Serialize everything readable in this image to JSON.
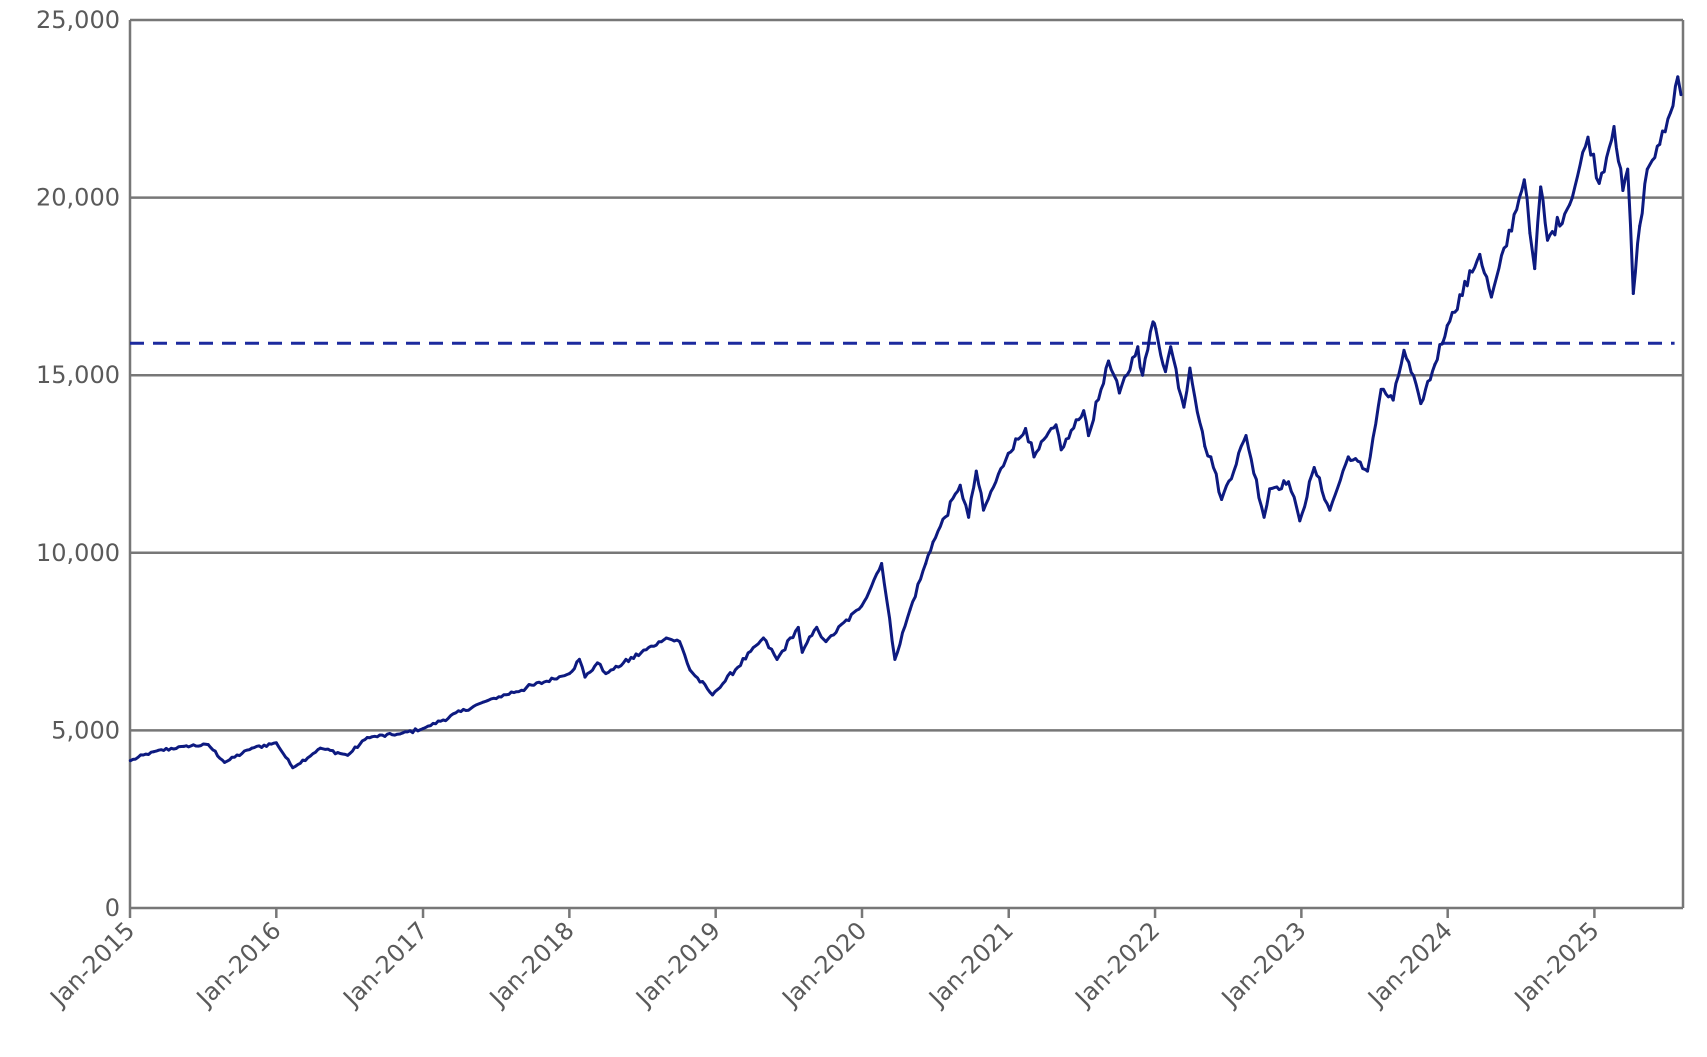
{
  "chart_data": {
    "type": "line",
    "title": "",
    "xlabel": "",
    "ylabel": "",
    "ylim": [
      0,
      25000
    ],
    "y_ticks": [
      0,
      5000,
      10000,
      15000,
      20000,
      25000
    ],
    "y_tick_labels": [
      "0",
      "5,000",
      "10,000",
      "15,000",
      "20,000",
      "25,000"
    ],
    "x_range": [
      "2015-01-01",
      "2025-08-10"
    ],
    "x_ticks": [
      "2015-01-01",
      "2016-01-01",
      "2017-01-01",
      "2018-01-01",
      "2019-01-01",
      "2020-01-01",
      "2021-01-01",
      "2022-01-01",
      "2023-01-01",
      "2024-01-01",
      "2025-01-01"
    ],
    "x_tick_labels": [
      "Jan-2015",
      "Jan-2016",
      "Jan-2017",
      "Jan-2018",
      "Jan-2019",
      "Jan-2020",
      "Jan-2021",
      "Jan-2022",
      "Jan-2023",
      "Jan-2024",
      "Jan-2025"
    ],
    "grid": "horizontal",
    "legend": "none",
    "colors": {
      "series": "#0d1a80",
      "reference": "#1c2a9e",
      "grid": "#777777",
      "text": "#5a5a5a"
    },
    "reference_line": {
      "y": 15900,
      "style": "dashed",
      "x_end": "2025-07-20"
    },
    "series": [
      {
        "x": [
          "2015-01-02",
          "2015-03-01",
          "2015-05-15",
          "2015-07-15",
          "2015-08-25",
          "2015-11-01",
          "2016-01-01",
          "2016-02-11",
          "2016-04-20",
          "2016-06-27",
          "2016-08-15",
          "2016-11-04",
          "2017-01-01",
          "2017-06-01",
          "2018-01-01",
          "2018-01-26",
          "2018-02-09",
          "2018-03-12",
          "2018-04-02",
          "2018-08-31",
          "2018-10-03",
          "2018-10-29",
          "2018-12-24",
          "2019-04-30",
          "2019-06-03",
          "2019-07-26",
          "2019-08-05",
          "2019-09-10",
          "2019-10-03",
          "2019-12-31",
          "2020-02-19",
          "2020-03-23",
          "2020-04-30",
          "2020-06-08",
          "2020-06-26",
          "2020-09-02",
          "2020-09-23",
          "2020-10-12",
          "2020-10-30",
          "2020-12-31",
          "2021-02-12",
          "2021-03-05",
          "2021-04-29",
          "2021-05-12",
          "2021-07-07",
          "2021-07-19",
          "2021-09-07",
          "2021-10-04",
          "2021-11-19",
          "2021-12-01",
          "2021-12-27",
          "2022-01-03",
          "2022-01-27",
          "2022-02-09",
          "2022-03-14",
          "2022-03-29",
          "2022-05-05",
          "2022-05-20",
          "2022-06-16",
          "2022-08-16",
          "2022-09-30",
          "2022-10-14",
          "2022-11-30",
          "2022-12-28",
          "2023-02-02",
          "2023-03-13",
          "2023-04-28",
          "2023-06-15",
          "2023-07-19",
          "2023-08-18",
          "2023-09-14",
          "2023-10-26",
          "2023-11-30",
          "2023-12-31",
          "2024-03-21",
          "2024-04-19",
          "2024-07-10",
          "2024-07-24",
          "2024-08-05",
          "2024-08-20",
          "2024-09-06",
          "2024-10-31",
          "2024-12-16",
          "2025-01-13",
          "2025-02-19",
          "2025-03-13",
          "2025-03-25",
          "2025-04-08",
          "2025-04-24",
          "2025-05-13",
          "2025-06-13",
          "2025-07-10",
          "2025-07-28",
          "2025-08-05"
        ],
        "values": [
          4150,
          4400,
          4550,
          4600,
          4100,
          4500,
          4650,
          3950,
          4500,
          4300,
          4800,
          4900,
          5050,
          5800,
          6600,
          7000,
          6500,
          6900,
          6600,
          7600,
          7500,
          6700,
          6000,
          7600,
          7000,
          7900,
          7200,
          7900,
          7500,
          8500,
          9700,
          7000,
          8400,
          9700,
          10300,
          11900,
          11000,
          12300,
          11200,
          12800,
          13500,
          12700,
          13600,
          12900,
          14000,
          13300,
          15400,
          14500,
          15800,
          15000,
          16500,
          16300,
          15100,
          15800,
          14100,
          15200,
          13000,
          12700,
          11500,
          13300,
          11000,
          11800,
          12000,
          10900,
          12400,
          11200,
          12700,
          12300,
          14600,
          14300,
          15700,
          14200,
          15300,
          16400,
          18400,
          17200,
          20500,
          19000,
          18000,
          20300,
          18800,
          19800,
          21700,
          20400,
          22000,
          20200,
          20800,
          17300,
          19200,
          20800,
          21500,
          22400,
          23400,
          22900
        ]
      }
    ]
  }
}
